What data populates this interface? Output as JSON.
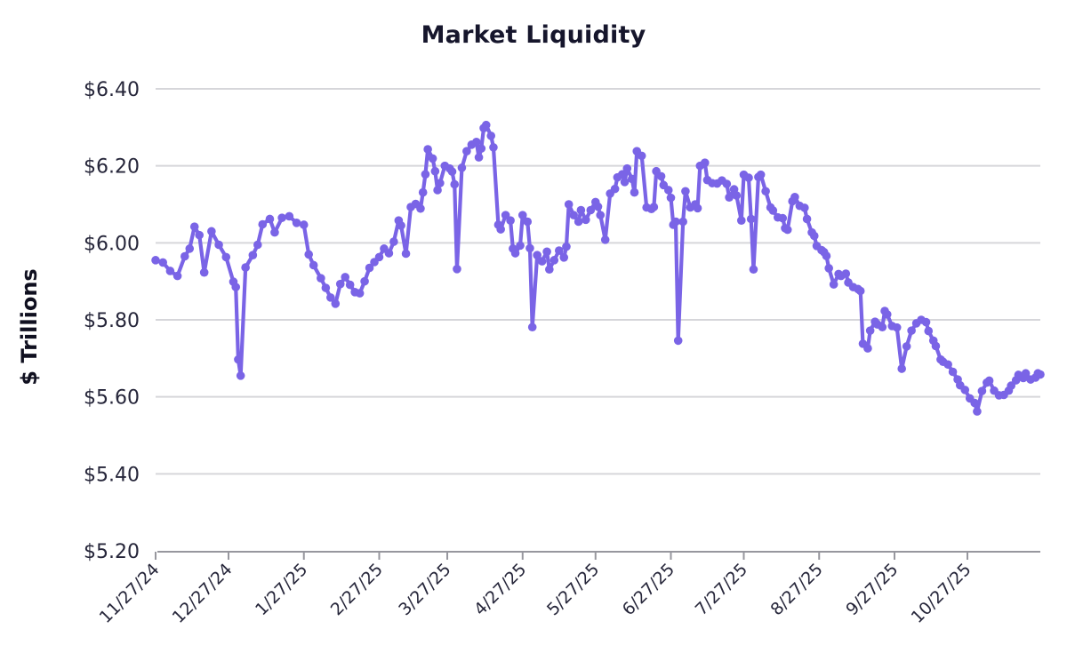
{
  "page": {
    "background": "#ffffff"
  },
  "chart_data": {
    "type": "line",
    "title": "Market Liquidity",
    "xlabel": "",
    "ylabel": "$ Trillions",
    "ylim": [
      5.2,
      6.4
    ],
    "grid": "horizontal-only",
    "legend": "none",
    "line_color": "#7a64e6",
    "grid_color": "#d6d6da",
    "axis_color": "#97979e",
    "title_color": "#16162c",
    "tick_label_color": "#26263a",
    "y_ticks": [
      {
        "label": "$6.40",
        "value": 6.4
      },
      {
        "label": "$6.20",
        "value": 6.2
      },
      {
        "label": "$6.00",
        "value": 6.0
      },
      {
        "label": "$5.80",
        "value": 5.8
      },
      {
        "label": "$5.60",
        "value": 5.6
      },
      {
        "label": "$5.40",
        "value": 5.4
      },
      {
        "label": "$5.20",
        "value": 5.2
      }
    ],
    "x_tick_labels": [
      "11/27/24",
      "12/27/24",
      "1/27/25",
      "2/27/25",
      "3/27/25",
      "4/27/25",
      "5/27/25",
      "6/27/25",
      "7/27/25",
      "8/27/25",
      "9/27/25",
      "10/27/25"
    ],
    "x_start_date": "11/27/24",
    "x_end_date": "11/26/25",
    "series": [
      {
        "name": "Market Liquidity ($T)",
        "points": [
          [
            "11/27/24",
            5.955
          ],
          [
            "11/30/24",
            5.949
          ],
          [
            "12/3/24",
            5.927
          ],
          [
            "12/6/24",
            5.914
          ],
          [
            "12/9/24",
            5.965
          ],
          [
            "12/11/24",
            5.985
          ],
          [
            "12/13/24",
            6.042
          ],
          [
            "12/15/24",
            6.02
          ],
          [
            "12/17/24",
            5.923
          ],
          [
            "12/20/24",
            6.03
          ],
          [
            "12/23/24",
            5.995
          ],
          [
            "12/26/24",
            5.963
          ],
          [
            "12/29/24",
            5.899
          ],
          [
            "12/30/24",
            5.885
          ],
          [
            "12/31/24",
            5.697
          ],
          [
            "1/1/25",
            5.655
          ],
          [
            "1/3/25",
            5.936
          ],
          [
            "1/6/25",
            5.968
          ],
          [
            "1/8/25",
            5.995
          ],
          [
            "1/10/25",
            6.048
          ],
          [
            "1/13/25",
            6.062
          ],
          [
            "1/15/25",
            6.027
          ],
          [
            "1/18/25",
            6.065
          ],
          [
            "1/21/25",
            6.069
          ],
          [
            "1/24/25",
            6.052
          ],
          [
            "1/27/25",
            6.047
          ],
          [
            "1/29/25",
            5.97
          ],
          [
            "1/31/25",
            5.942
          ],
          [
            "2/3/25",
            5.908
          ],
          [
            "2/5/25",
            5.883
          ],
          [
            "2/7/25",
            5.858
          ],
          [
            "2/9/25",
            5.842
          ],
          [
            "2/11/25",
            5.893
          ],
          [
            "2/13/25",
            5.911
          ],
          [
            "2/15/25",
            5.891
          ],
          [
            "2/17/25",
            5.872
          ],
          [
            "2/19/25",
            5.869
          ],
          [
            "2/21/25",
            5.9
          ],
          [
            "2/23/25",
            5.935
          ],
          [
            "2/25/25",
            5.95
          ],
          [
            "2/27/25",
            5.963
          ],
          [
            "3/1/25",
            5.985
          ],
          [
            "3/3/25",
            5.973
          ],
          [
            "3/5/25",
            6.003
          ],
          [
            "3/7/25",
            6.058
          ],
          [
            "3/8/25",
            6.045
          ],
          [
            "3/10/25",
            5.972
          ],
          [
            "3/12/25",
            6.093
          ],
          [
            "3/14/25",
            6.101
          ],
          [
            "3/16/25",
            6.089
          ],
          [
            "3/17/25",
            6.131
          ],
          [
            "3/18/25",
            6.178
          ],
          [
            "3/19/25",
            6.243
          ],
          [
            "3/21/25",
            6.219
          ],
          [
            "3/22/25",
            6.186
          ],
          [
            "3/23/25",
            6.137
          ],
          [
            "3/24/25",
            6.155
          ],
          [
            "3/26/25",
            6.2
          ],
          [
            "3/28/25",
            6.193
          ],
          [
            "3/29/25",
            6.185
          ],
          [
            "3/30/25",
            6.152
          ],
          [
            "3/31/25",
            5.932
          ],
          [
            "4/2/25",
            6.195
          ],
          [
            "4/4/25",
            6.238
          ],
          [
            "4/6/25",
            6.255
          ],
          [
            "4/8/25",
            6.262
          ],
          [
            "4/9/25",
            6.222
          ],
          [
            "4/10/25",
            6.245
          ],
          [
            "4/11/25",
            6.298
          ],
          [
            "4/12/25",
            6.306
          ],
          [
            "4/14/25",
            6.278
          ],
          [
            "4/15/25",
            6.248
          ],
          [
            "4/17/25",
            6.047
          ],
          [
            "4/18/25",
            6.035
          ],
          [
            "4/20/25",
            6.072
          ],
          [
            "4/22/25",
            6.058
          ],
          [
            "4/23/25",
            5.985
          ],
          [
            "4/24/25",
            5.973
          ],
          [
            "4/26/25",
            5.993
          ],
          [
            "4/27/25",
            6.072
          ],
          [
            "4/29/25",
            6.055
          ],
          [
            "4/30/25",
            5.986
          ],
          [
            "5/1/25",
            5.781
          ],
          [
            "5/3/25",
            5.968
          ],
          [
            "5/5/25",
            5.952
          ],
          [
            "5/7/25",
            5.977
          ],
          [
            "5/8/25",
            5.931
          ],
          [
            "5/10/25",
            5.955
          ],
          [
            "5/12/25",
            5.98
          ],
          [
            "5/14/25",
            5.962
          ],
          [
            "5/15/25",
            5.99
          ],
          [
            "5/16/25",
            6.1
          ],
          [
            "5/18/25",
            6.072
          ],
          [
            "5/20/25",
            6.055
          ],
          [
            "5/21/25",
            6.085
          ],
          [
            "5/23/25",
            6.06
          ],
          [
            "5/25/25",
            6.085
          ],
          [
            "5/27/25",
            6.106
          ],
          [
            "5/28/25",
            6.094
          ],
          [
            "5/29/25",
            6.072
          ],
          [
            "5/31/25",
            6.008
          ],
          [
            "6/2/25",
            6.128
          ],
          [
            "6/4/25",
            6.14
          ],
          [
            "6/5/25",
            6.17
          ],
          [
            "6/7/25",
            6.178
          ],
          [
            "6/8/25",
            6.158
          ],
          [
            "6/9/25",
            6.193
          ],
          [
            "6/11/25",
            6.166
          ],
          [
            "6/12/25",
            6.131
          ],
          [
            "6/13/25",
            6.238
          ],
          [
            "6/15/25",
            6.226
          ],
          [
            "6/17/25",
            6.092
          ],
          [
            "6/19/25",
            6.088
          ],
          [
            "6/20/25",
            6.093
          ],
          [
            "6/21/25",
            6.186
          ],
          [
            "6/23/25",
            6.173
          ],
          [
            "6/24/25",
            6.15
          ],
          [
            "6/26/25",
            6.137
          ],
          [
            "6/27/25",
            6.117
          ],
          [
            "6/28/25",
            6.047
          ],
          [
            "6/29/25",
            6.055
          ],
          [
            "6/30/25",
            5.746
          ],
          [
            "7/2/25",
            6.055
          ],
          [
            "7/3/25",
            6.134
          ],
          [
            "7/5/25",
            6.092
          ],
          [
            "7/7/25",
            6.1
          ],
          [
            "7/8/25",
            6.09
          ],
          [
            "7/9/25",
            6.2
          ],
          [
            "7/11/25",
            6.208
          ],
          [
            "7/12/25",
            6.163
          ],
          [
            "7/14/25",
            6.155
          ],
          [
            "7/16/25",
            6.154
          ],
          [
            "7/18/25",
            6.162
          ],
          [
            "7/20/25",
            6.153
          ],
          [
            "7/21/25",
            6.118
          ],
          [
            "7/23/25",
            6.139
          ],
          [
            "7/24/25",
            6.123
          ],
          [
            "7/26/25",
            6.058
          ],
          [
            "7/27/25",
            6.177
          ],
          [
            "7/29/25",
            6.169
          ],
          [
            "7/30/25",
            6.062
          ],
          [
            "7/31/25",
            5.931
          ],
          [
            "8/2/25",
            6.171
          ],
          [
            "8/3/25",
            6.177
          ],
          [
            "8/5/25",
            6.134
          ],
          [
            "8/7/25",
            6.092
          ],
          [
            "8/8/25",
            6.084
          ],
          [
            "8/10/25",
            6.066
          ],
          [
            "8/12/25",
            6.064
          ],
          [
            "8/13/25",
            6.038
          ],
          [
            "8/14/25",
            6.034
          ],
          [
            "8/16/25",
            6.108
          ],
          [
            "8/17/25",
            6.119
          ],
          [
            "8/19/25",
            6.096
          ],
          [
            "8/21/25",
            6.091
          ],
          [
            "8/22/25",
            6.062
          ],
          [
            "8/24/25",
            6.027
          ],
          [
            "8/25/25",
            6.018
          ],
          [
            "8/26/25",
            5.992
          ],
          [
            "8/28/25",
            5.981
          ],
          [
            "8/29/25",
            5.976
          ],
          [
            "8/30/25",
            5.966
          ],
          [
            "8/31/25",
            5.934
          ],
          [
            "9/2/25",
            5.892
          ],
          [
            "9/4/25",
            5.919
          ],
          [
            "9/5/25",
            5.914
          ],
          [
            "9/7/25",
            5.92
          ],
          [
            "9/8/25",
            5.897
          ],
          [
            "9/10/25",
            5.885
          ],
          [
            "9/12/25",
            5.88
          ],
          [
            "9/13/25",
            5.875
          ],
          [
            "9/14/25",
            5.738
          ],
          [
            "9/16/25",
            5.726
          ],
          [
            "9/17/25",
            5.772
          ],
          [
            "9/19/25",
            5.795
          ],
          [
            "9/20/25",
            5.788
          ],
          [
            "9/22/25",
            5.781
          ],
          [
            "9/23/25",
            5.823
          ],
          [
            "9/24/25",
            5.814
          ],
          [
            "9/26/25",
            5.784
          ],
          [
            "9/28/25",
            5.78
          ],
          [
            "9/30/25",
            5.673
          ],
          [
            "10/2/25",
            5.731
          ],
          [
            "10/4/25",
            5.772
          ],
          [
            "10/6/25",
            5.791
          ],
          [
            "10/8/25",
            5.8
          ],
          [
            "10/10/25",
            5.794
          ],
          [
            "10/11/25",
            5.771
          ],
          [
            "10/13/25",
            5.746
          ],
          [
            "10/14/25",
            5.732
          ],
          [
            "10/16/25",
            5.697
          ],
          [
            "10/17/25",
            5.691
          ],
          [
            "10/19/25",
            5.684
          ],
          [
            "10/21/25",
            5.665
          ],
          [
            "10/23/25",
            5.645
          ],
          [
            "10/24/25",
            5.63
          ],
          [
            "10/26/25",
            5.618
          ],
          [
            "10/28/25",
            5.596
          ],
          [
            "10/30/25",
            5.584
          ],
          [
            "10/31/25",
            5.562
          ],
          [
            "11/2/25",
            5.615
          ],
          [
            "11/4/25",
            5.637
          ],
          [
            "11/5/25",
            5.642
          ],
          [
            "11/7/25",
            5.616
          ],
          [
            "11/9/25",
            5.604
          ],
          [
            "11/11/25",
            5.605
          ],
          [
            "11/13/25",
            5.616
          ],
          [
            "11/14/25",
            5.629
          ],
          [
            "11/16/25",
            5.643
          ],
          [
            "11/17/25",
            5.657
          ],
          [
            "11/19/25",
            5.649
          ],
          [
            "11/20/25",
            5.661
          ],
          [
            "11/22/25",
            5.645
          ],
          [
            "11/24/25",
            5.65
          ],
          [
            "11/25/25",
            5.661
          ],
          [
            "11/26/25",
            5.658
          ]
        ]
      }
    ]
  }
}
